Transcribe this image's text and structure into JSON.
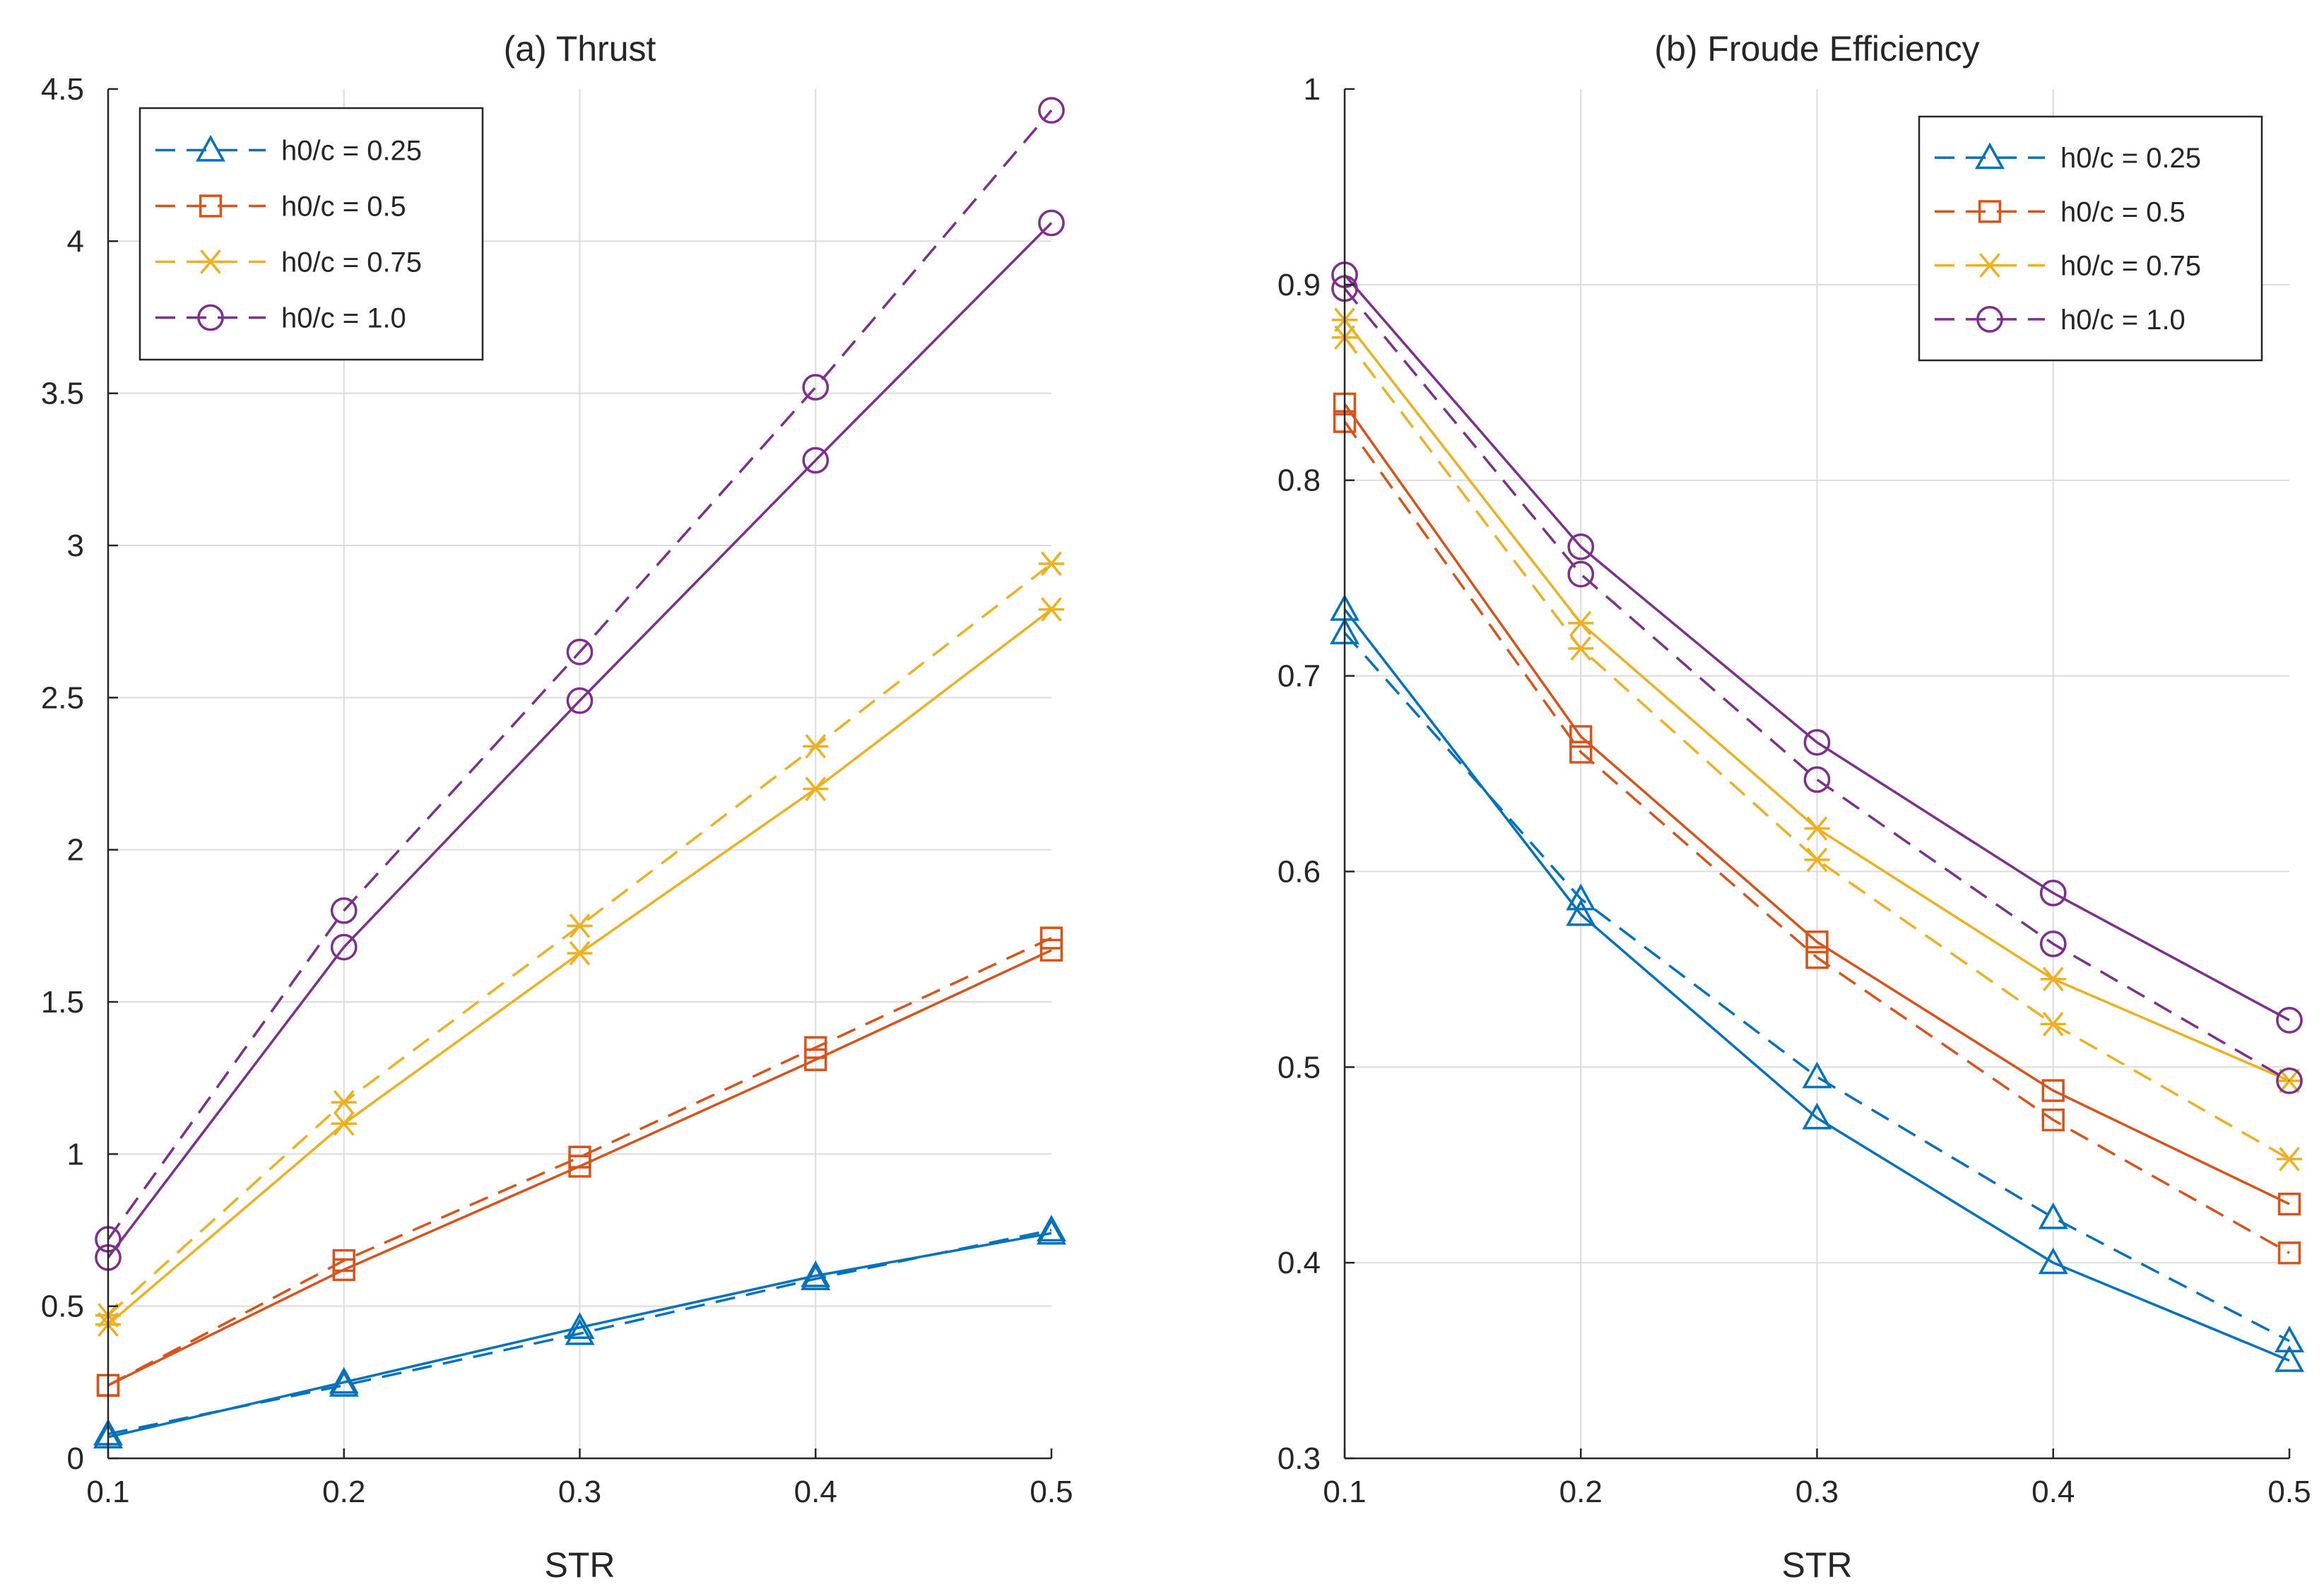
{
  "chart_data": [
    {
      "type": "line",
      "title": "(a) Thrust",
      "xlabel": "STR",
      "ylabel": "",
      "xlim": [
        0.1,
        0.5
      ],
      "ylim": [
        0,
        4.5
      ],
      "xticks": [
        0.1,
        0.2,
        0.3,
        0.4,
        0.5
      ],
      "xtick_labels": [
        "0.1",
        "0.2",
        "0.3",
        "0.4",
        "0.5"
      ],
      "yticks": [
        0,
        0.5,
        1,
        1.5,
        2,
        2.5,
        3,
        3.5,
        4,
        4.5
      ],
      "ytick_labels": [
        "0",
        "0.5",
        "1",
        "1.5",
        "2",
        "2.5",
        "3",
        "3.5",
        "4",
        "4.5"
      ],
      "grid": true,
      "legend_position": "top-left",
      "legend": [
        {
          "label": "h0/c = 0.25",
          "color": "#0072BD",
          "marker": "triangle"
        },
        {
          "label": "h0/c = 0.5",
          "color": "#D95319",
          "marker": "square"
        },
        {
          "label": "h0/c = 0.75",
          "color": "#EDB120",
          "marker": "asterisk"
        },
        {
          "label": "h0/c = 1.0",
          "color": "#7E2F8E",
          "marker": "circle"
        }
      ],
      "x": [
        0.1,
        0.2,
        0.3,
        0.4,
        0.5
      ],
      "series": [
        {
          "name": "h0/c = 0.25 (dashed)",
          "color": "#0072BD",
          "marker": "triangle",
          "dash": true,
          "values": [
            0.08,
            0.24,
            0.41,
            0.59,
            0.75
          ]
        },
        {
          "name": "h0/c = 0.25 (solid)",
          "color": "#0072BD",
          "marker": "triangle",
          "dash": false,
          "values": [
            0.07,
            0.25,
            0.43,
            0.6,
            0.74
          ]
        },
        {
          "name": "h0/c = 0.5 (dashed)",
          "color": "#D95319",
          "marker": "square",
          "dash": true,
          "values": [
            0.24,
            0.65,
            0.99,
            1.35,
            1.71
          ]
        },
        {
          "name": "h0/c = 0.5 (solid)",
          "color": "#D95319",
          "marker": "square",
          "dash": false,
          "values": [
            0.24,
            0.62,
            0.96,
            1.31,
            1.67
          ]
        },
        {
          "name": "h0/c = 0.75 (dashed)",
          "color": "#EDB120",
          "marker": "asterisk",
          "dash": true,
          "values": [
            0.47,
            1.17,
            1.75,
            2.34,
            2.94
          ]
        },
        {
          "name": "h0/c = 0.75 (solid)",
          "color": "#EDB120",
          "marker": "asterisk",
          "dash": false,
          "values": [
            0.44,
            1.1,
            1.66,
            2.2,
            2.79
          ]
        },
        {
          "name": "h0/c = 1.0 (dashed)",
          "color": "#7E2F8E",
          "marker": "circle",
          "dash": true,
          "values": [
            0.72,
            1.8,
            2.65,
            3.52,
            4.43
          ]
        },
        {
          "name": "h0/c = 1.0 (solid)",
          "color": "#7E2F8E",
          "marker": "circle",
          "dash": false,
          "values": [
            0.66,
            1.68,
            2.49,
            3.28,
            4.06
          ]
        }
      ]
    },
    {
      "type": "line",
      "title": "(b) Froude Efficiency",
      "xlabel": "STR",
      "ylabel": "",
      "xlim": [
        0.1,
        0.5
      ],
      "ylim": [
        0.3,
        1
      ],
      "xticks": [
        0.1,
        0.2,
        0.3,
        0.4,
        0.5
      ],
      "xtick_labels": [
        "0.1",
        "0.2",
        "0.3",
        "0.4",
        "0.5"
      ],
      "yticks": [
        0.3,
        0.4,
        0.5,
        0.6,
        0.7,
        0.8,
        0.9,
        1
      ],
      "ytick_labels": [
        "0.3",
        "0.4",
        "0.5",
        "0.6",
        "0.7",
        "0.8",
        "0.9",
        "1"
      ],
      "grid": true,
      "legend_position": "top-right",
      "legend": [
        {
          "label": "h0/c = 0.25",
          "color": "#0072BD",
          "marker": "triangle"
        },
        {
          "label": "h0/c = 0.5",
          "color": "#D95319",
          "marker": "square"
        },
        {
          "label": "h0/c = 0.75",
          "color": "#EDB120",
          "marker": "asterisk"
        },
        {
          "label": "h0/c = 1.0",
          "color": "#7E2F8E",
          "marker": "circle"
        }
      ],
      "x": [
        0.1,
        0.2,
        0.3,
        0.4,
        0.5
      ],
      "series": [
        {
          "name": "h0/c = 0.25 (solid)",
          "color": "#0072BD",
          "marker": "triangle",
          "dash": false,
          "values": [
            0.734,
            0.578,
            0.474,
            0.4,
            0.35
          ]
        },
        {
          "name": "h0/c = 0.25 (dashed)",
          "color": "#0072BD",
          "marker": "triangle",
          "dash": true,
          "values": [
            0.722,
            0.586,
            0.495,
            0.423,
            0.36
          ]
        },
        {
          "name": "h0/c = 0.5 (solid)",
          "color": "#D95319",
          "marker": "square",
          "dash": false,
          "values": [
            0.839,
            0.669,
            0.564,
            0.488,
            0.43
          ]
        },
        {
          "name": "h0/c = 0.5 (dashed)",
          "color": "#D95319",
          "marker": "square",
          "dash": true,
          "values": [
            0.83,
            0.661,
            0.556,
            0.473,
            0.405
          ]
        },
        {
          "name": "h0/c = 0.75 (solid)",
          "color": "#EDB120",
          "marker": "asterisk",
          "dash": false,
          "values": [
            0.882,
            0.727,
            0.622,
            0.545,
            0.493
          ]
        },
        {
          "name": "h0/c = 0.75 (dashed)",
          "color": "#EDB120",
          "marker": "asterisk",
          "dash": true,
          "values": [
            0.873,
            0.714,
            0.606,
            0.522,
            0.453
          ]
        },
        {
          "name": "h0/c = 1.0 (solid)",
          "color": "#7E2F8E",
          "marker": "circle",
          "dash": false,
          "values": [
            0.905,
            0.766,
            0.666,
            0.589,
            0.524
          ]
        },
        {
          "name": "h0/c = 1.0 (dashed)",
          "color": "#7E2F8E",
          "marker": "circle",
          "dash": true,
          "values": [
            0.898,
            0.752,
            0.647,
            0.563,
            0.493
          ]
        }
      ]
    }
  ]
}
